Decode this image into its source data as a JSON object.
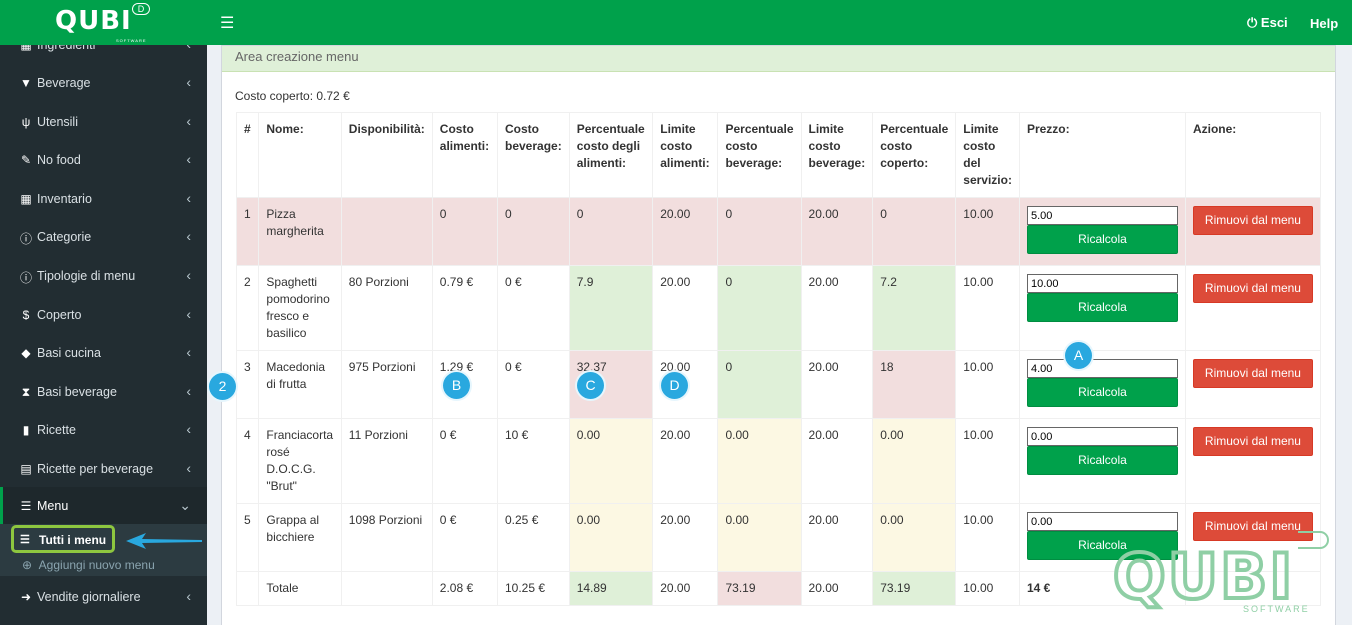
{
  "brand": {
    "logo": "QUBI",
    "logo_sub": "SOFTWARE",
    "badge": "D"
  },
  "topbar": {
    "esci": "Esci",
    "help": "Help"
  },
  "sidebar": {
    "items": [
      {
        "label": "Ingredienti",
        "icon": "table-icon"
      },
      {
        "label": "Beverage",
        "icon": "glass-icon"
      },
      {
        "label": "Utensili",
        "icon": "cutlery-icon"
      },
      {
        "label": "No food",
        "icon": "wrench-icon"
      },
      {
        "label": "Inventario",
        "icon": "table-icon"
      },
      {
        "label": "Categorie",
        "icon": "info-icon"
      },
      {
        "label": "Tipologie di menu",
        "icon": "info-icon"
      },
      {
        "label": "Coperto",
        "icon": "dollar-icon"
      },
      {
        "label": "Basi cucina",
        "icon": "cube-icon"
      },
      {
        "label": "Basi beverage",
        "icon": "hourglass-icon"
      },
      {
        "label": "Ricette",
        "icon": "file-icon"
      },
      {
        "label": "Ricette per beverage",
        "icon": "file-text-icon"
      },
      {
        "label": "Menu",
        "icon": "list-icon"
      },
      {
        "label": "Vendite giornaliere",
        "icon": "arrow-circle-icon"
      }
    ],
    "submenu": {
      "active": "Tutti i menu",
      "other": "Aggiungi nuovo menu"
    }
  },
  "main": {
    "title": "Area creazione menu",
    "costo_coperto": "Costo coperto: 0.72 €",
    "headers": [
      "#",
      "Nome:",
      "Disponibilità:",
      "Costo alimenti:",
      "Costo beverage:",
      "Percentuale costo degli alimenti:",
      "Limite costo alimenti:",
      "Percentuale costo beverage:",
      "Limite costo beverage:",
      "Percentuale costo coperto:",
      "Limite costo del servizio:",
      "Prezzo:",
      "Azione:"
    ],
    "rows": [
      {
        "num": "1",
        "nome": "Pizza margherita",
        "disp": "",
        "costo_alim": "0",
        "costo_bev": "0",
        "perc_alim": "0",
        "lim_alim": "20.00",
        "perc_bev": "0",
        "lim_bev": "20.00",
        "perc_cop": "0",
        "lim_serv": "10.00",
        "prezzo": "5.00"
      },
      {
        "num": "2",
        "nome": "Spaghetti pomodorino fresco e basilico",
        "disp": "80 Porzioni",
        "costo_alim": "0.79 €",
        "costo_bev": "0 €",
        "perc_alim": "7.9",
        "lim_alim": "20.00",
        "perc_bev": "0",
        "lim_bev": "20.00",
        "perc_cop": "7.2",
        "lim_serv": "10.00",
        "prezzo": "10.00"
      },
      {
        "num": "3",
        "nome": "Macedonia di frutta",
        "disp": "975 Porzioni",
        "costo_alim": "1.29 €",
        "costo_bev": "0 €",
        "perc_alim": "32.37",
        "lim_alim": "20.00",
        "perc_bev": "0",
        "lim_bev": "20.00",
        "perc_cop": "18",
        "lim_serv": "10.00",
        "prezzo": "4.00"
      },
      {
        "num": "4",
        "nome": "Franciacorta rosé D.O.C.G. \"Brut\"",
        "disp": "11 Porzioni",
        "costo_alim": "0 €",
        "costo_bev": "10 €",
        "perc_alim": "0.00",
        "lim_alim": "20.00",
        "perc_bev": "0.00",
        "lim_bev": "20.00",
        "perc_cop": "0.00",
        "lim_serv": "10.00",
        "prezzo": "0.00"
      },
      {
        "num": "5",
        "nome": "Grappa al bicchiere",
        "disp": "1098 Porzioni",
        "costo_alim": "0 €",
        "costo_bev": "0.25 €",
        "perc_alim": "0.00",
        "lim_alim": "20.00",
        "perc_bev": "0.00",
        "lim_bev": "20.00",
        "perc_cop": "0.00",
        "lim_serv": "10.00",
        "prezzo": "0.00"
      }
    ],
    "totale": {
      "label": "Totale",
      "costo_alim": "2.08 €",
      "costo_bev": "10.25 €",
      "perc_alim": "14.89",
      "lim_alim": "20.00",
      "perc_bev": "73.19",
      "lim_bev": "20.00",
      "perc_cop": "73.19",
      "lim_serv": "10.00",
      "prezzo": "14 €"
    },
    "ricalcola_label": "Ricalcola",
    "rimuovi_label": "Rimuovi dal menu"
  },
  "markers": {
    "a": "A",
    "b": "B",
    "c": "C",
    "d": "D",
    "two": "2"
  },
  "colors": {
    "brand_green": "#00a14b",
    "sidebar_dark": "#222d32",
    "danger": "#dd4b39",
    "marker_blue": "#29a8df",
    "highlight_green": "#8dc63f"
  }
}
